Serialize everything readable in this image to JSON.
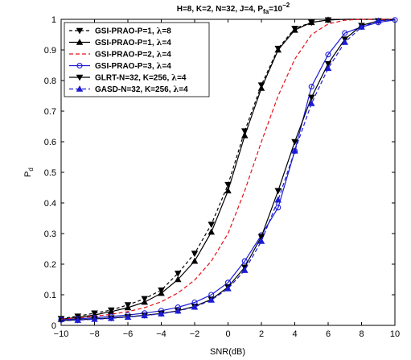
{
  "chart_data": {
    "type": "line",
    "title": "H=8, K=2, N=32, J=4, P",
    "title_sub": "fa",
    "title_tail": "=10",
    "title_exp": "−2",
    "xlabel": "SNR(dB)",
    "ylabel": "P",
    "ylabel_sub": "d",
    "xlim": [
      -10,
      10
    ],
    "ylim": [
      0,
      1
    ],
    "xticks": [
      -10,
      -8,
      -6,
      -4,
      -2,
      0,
      2,
      4,
      6,
      8,
      10
    ],
    "yticks": [
      0,
      0.1,
      0.2,
      0.3,
      0.4,
      0.5,
      0.6,
      0.7,
      0.8,
      0.9,
      1
    ],
    "xtick_labels": [
      "−10",
      "−8",
      "−6",
      "−4",
      "−2",
      "0",
      "2",
      "4",
      "6",
      "8",
      "10"
    ],
    "ytick_labels": [
      "0",
      "0.1",
      "0.2",
      "0.3",
      "0.4",
      "0.5",
      "0.6",
      "0.7",
      "0.8",
      "0.9",
      "1"
    ],
    "grid": false,
    "legend_position": "top-left",
    "series": [
      {
        "name": "GSI-PRAO-P=1, λ=8",
        "name_prefix": "GSI-PRAO-P=1, ",
        "name_lambda": "λ",
        "name_suffix": "=8",
        "color": "#000000",
        "dash": "4,3",
        "marker": "triangle-down",
        "x": [
          -10,
          -9,
          -8,
          -7,
          -6,
          -5,
          -4,
          -3,
          -2,
          -1,
          0,
          1,
          2,
          3,
          4,
          5,
          6,
          7,
          8,
          9,
          10
        ],
        "y": [
          0.022,
          0.03,
          0.04,
          0.05,
          0.067,
          0.087,
          0.115,
          0.17,
          0.235,
          0.33,
          0.46,
          0.635,
          0.785,
          0.905,
          0.97,
          0.99,
          0.998,
          1,
          1,
          1,
          1
        ],
        "markers_x": [
          -10,
          -9,
          -8,
          -7,
          -6,
          -5,
          -4,
          -3,
          -2,
          -1,
          0,
          1,
          2,
          3,
          4,
          5,
          6
        ],
        "markers_y": [
          0.022,
          0.03,
          0.04,
          0.05,
          0.067,
          0.087,
          0.115,
          0.17,
          0.235,
          0.33,
          0.46,
          0.635,
          0.785,
          0.905,
          0.97,
          0.99,
          0.998
        ]
      },
      {
        "name": "GSI-PRAO-P=1, λ=4",
        "name_prefix": "GSI-PRAO-P=1, ",
        "name_lambda": "λ",
        "name_suffix": "=4",
        "color": "#000000",
        "dash": "",
        "marker": "triangle-up",
        "x": [
          -10,
          -9,
          -8,
          -7,
          -6,
          -5,
          -4,
          -3,
          -2,
          -1,
          0,
          1,
          2,
          3,
          4,
          5,
          6,
          7,
          8,
          9,
          10
        ],
        "y": [
          0.02,
          0.026,
          0.034,
          0.045,
          0.058,
          0.076,
          0.105,
          0.15,
          0.21,
          0.305,
          0.44,
          0.62,
          0.775,
          0.9,
          0.965,
          0.99,
          0.998,
          1,
          1,
          1,
          1
        ],
        "markers_x": [
          -10,
          -9,
          -8,
          -7,
          -6,
          -5,
          -4,
          -3,
          -2,
          -1,
          0,
          1,
          2,
          3,
          4,
          5,
          6
        ],
        "markers_y": [
          0.02,
          0.026,
          0.034,
          0.045,
          0.058,
          0.076,
          0.105,
          0.15,
          0.21,
          0.305,
          0.44,
          0.62,
          0.775,
          0.9,
          0.965,
          0.99,
          0.998
        ]
      },
      {
        "name": "GSI-PRAO-P=2, λ=4",
        "name_prefix": "GSI-PRAO-P=2, ",
        "name_lambda": "λ",
        "name_suffix": "=4",
        "color": "#e8101a",
        "dash": "5,3",
        "marker": "none",
        "x": [
          -10,
          -9,
          -8,
          -7,
          -6,
          -5,
          -4,
          -3,
          -2,
          -1,
          0,
          1,
          2,
          3,
          4,
          5,
          6,
          7,
          8,
          9,
          10
        ],
        "y": [
          0.02,
          0.024,
          0.03,
          0.036,
          0.045,
          0.058,
          0.077,
          0.106,
          0.148,
          0.21,
          0.3,
          0.44,
          0.6,
          0.75,
          0.87,
          0.95,
          0.985,
          0.997,
          1,
          1,
          1
        ],
        "markers_x": [],
        "markers_y": []
      },
      {
        "name": "GSI-PRAO-P=3, λ=4",
        "name_prefix": "GSI-PRAO-P=3, ",
        "name_lambda": "λ",
        "name_suffix": "=4",
        "color": "#1b1bd6",
        "dash": "",
        "marker": "circle",
        "x": [
          -10,
          -9,
          -8,
          -7,
          -6,
          -5,
          -4,
          -3,
          -2,
          -1,
          0,
          1,
          2,
          3,
          4,
          5,
          6,
          7,
          8,
          9,
          10
        ],
        "y": [
          0.018,
          0.021,
          0.025,
          0.029,
          0.034,
          0.04,
          0.048,
          0.059,
          0.075,
          0.1,
          0.14,
          0.21,
          0.295,
          0.385,
          0.57,
          0.78,
          0.885,
          0.955,
          0.975,
          0.99,
          0.998
        ],
        "markers_x": [
          -10,
          -9,
          -8,
          -7,
          -6,
          -5,
          -4,
          -3,
          -2,
          -1,
          0,
          1,
          2,
          3,
          4,
          5,
          6,
          7,
          8,
          9,
          10
        ],
        "markers_y": [
          0.018,
          0.021,
          0.025,
          0.029,
          0.034,
          0.04,
          0.048,
          0.059,
          0.075,
          0.1,
          0.14,
          0.21,
          0.295,
          0.385,
          0.57,
          0.78,
          0.885,
          0.955,
          0.975,
          0.99,
          0.998
        ]
      },
      {
        "name": "GLRT-N=32, K=256, λ=4",
        "name_prefix": "GLRT-N=32, K=256, ",
        "name_lambda": "λ",
        "name_suffix": "=4",
        "color": "#000000",
        "dash": "",
        "marker": "triangle-down",
        "x": [
          -10,
          -9,
          -8,
          -7,
          -6,
          -5,
          -4,
          -3,
          -2,
          -1,
          0,
          1,
          2,
          3,
          4,
          5,
          6,
          7,
          8,
          9,
          10
        ],
        "y": [
          0.016,
          0.018,
          0.021,
          0.024,
          0.028,
          0.033,
          0.039,
          0.048,
          0.062,
          0.085,
          0.125,
          0.19,
          0.29,
          0.44,
          0.6,
          0.745,
          0.855,
          0.935,
          0.98,
          0.995,
          1
        ],
        "markers_x": [
          -9,
          -8,
          -7,
          -6,
          -5,
          -4,
          -3,
          -2,
          -1,
          0,
          1,
          2,
          3,
          4,
          5,
          6,
          7,
          8,
          9
        ],
        "markers_y": [
          0.018,
          0.021,
          0.024,
          0.028,
          0.033,
          0.039,
          0.048,
          0.062,
          0.085,
          0.125,
          0.19,
          0.29,
          0.44,
          0.6,
          0.745,
          0.855,
          0.935,
          0.98,
          0.995
        ]
      },
      {
        "name": "GASD-N=32, K=256, λ=4",
        "name_prefix": "GASD-N=32, K=256, ",
        "name_lambda": "λ",
        "name_suffix": "=4",
        "color": "#1b1bd6",
        "dash": "5,3",
        "marker": "triangle-up",
        "x": [
          -10,
          -9,
          -8,
          -7,
          -6,
          -5,
          -4,
          -3,
          -2,
          -1,
          0,
          1,
          2,
          3,
          4,
          5,
          6,
          7,
          8,
          9,
          10
        ],
        "y": [
          0.015,
          0.017,
          0.02,
          0.023,
          0.027,
          0.032,
          0.038,
          0.047,
          0.06,
          0.083,
          0.12,
          0.18,
          0.275,
          0.41,
          0.57,
          0.725,
          0.84,
          0.925,
          0.975,
          0.995,
          1
        ],
        "markers_x": [
          -9,
          -8,
          -7,
          -6,
          -5,
          -4,
          -3,
          -2,
          -1,
          0,
          1,
          2,
          3,
          4,
          5,
          6,
          7,
          8,
          9
        ],
        "markers_y": [
          0.017,
          0.02,
          0.023,
          0.027,
          0.032,
          0.038,
          0.047,
          0.06,
          0.083,
          0.12,
          0.18,
          0.275,
          0.41,
          0.57,
          0.725,
          0.84,
          0.925,
          0.975,
          0.995
        ]
      }
    ]
  }
}
